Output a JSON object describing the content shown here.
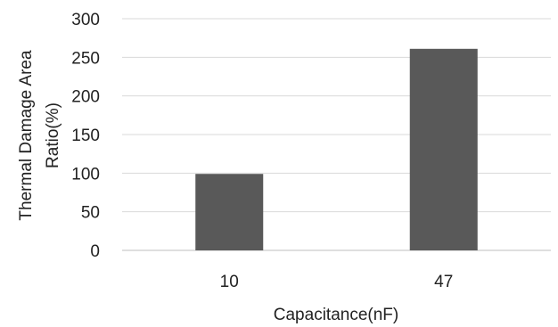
{
  "chart_data": {
    "type": "bar",
    "categories": [
      "10",
      "47"
    ],
    "values": [
      99,
      261
    ],
    "xlabel": "Capacitance(nF)",
    "ylabel_lines": [
      "Thermal Damage Area",
      "Ratio(%)"
    ],
    "ylim": [
      0,
      300
    ],
    "yticks": [
      0,
      50,
      100,
      150,
      200,
      250,
      300
    ],
    "grid": true,
    "legend": "none",
    "bar_color": "#595959"
  }
}
